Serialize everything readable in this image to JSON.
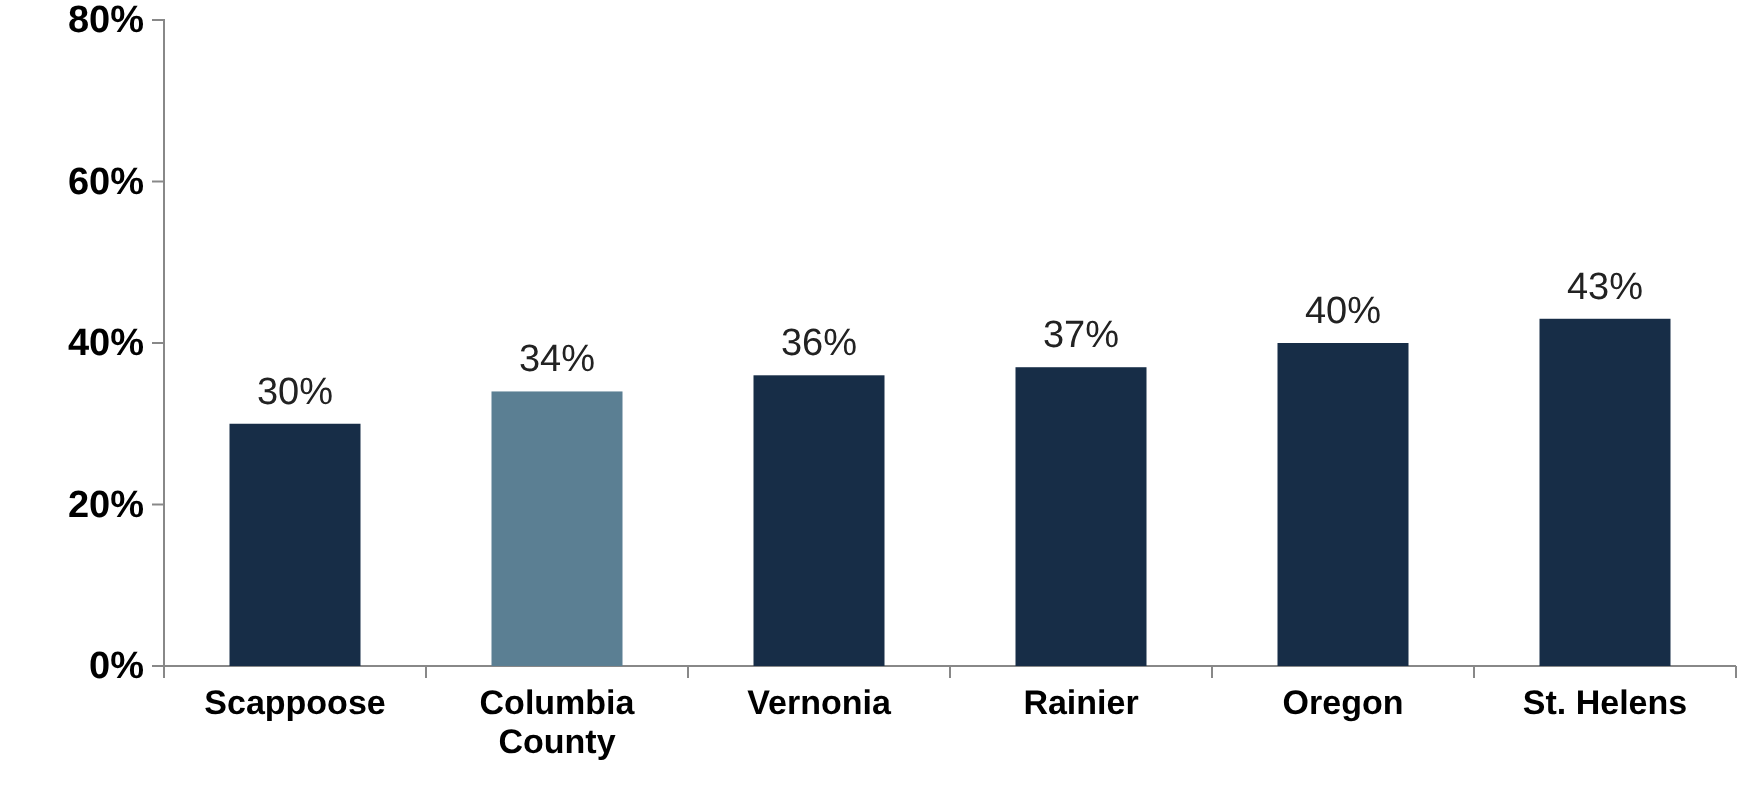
{
  "chart_data": {
    "type": "bar",
    "categories": [
      "Scappoose",
      "Columbia County",
      "Vernonia",
      "Rainier",
      "Oregon",
      "St. Helens"
    ],
    "values": [
      30,
      34,
      36,
      37,
      40,
      43
    ],
    "colors": [
      "#172d47",
      "#5b7f93",
      "#172d47",
      "#172d47",
      "#172d47",
      "#172d47"
    ],
    "ylim": [
      0,
      80
    ],
    "yticks": [
      {
        "value": 0,
        "label": "0%"
      },
      {
        "value": 20,
        "label": "20%"
      },
      {
        "value": 40,
        "label": "40%"
      },
      {
        "value": 60,
        "label": "60%"
      },
      {
        "value": 80,
        "label": "80%"
      }
    ],
    "value_labels": [
      "30%",
      "34%",
      "36%",
      "37%",
      "40%",
      "43%"
    ],
    "grid": false
  }
}
